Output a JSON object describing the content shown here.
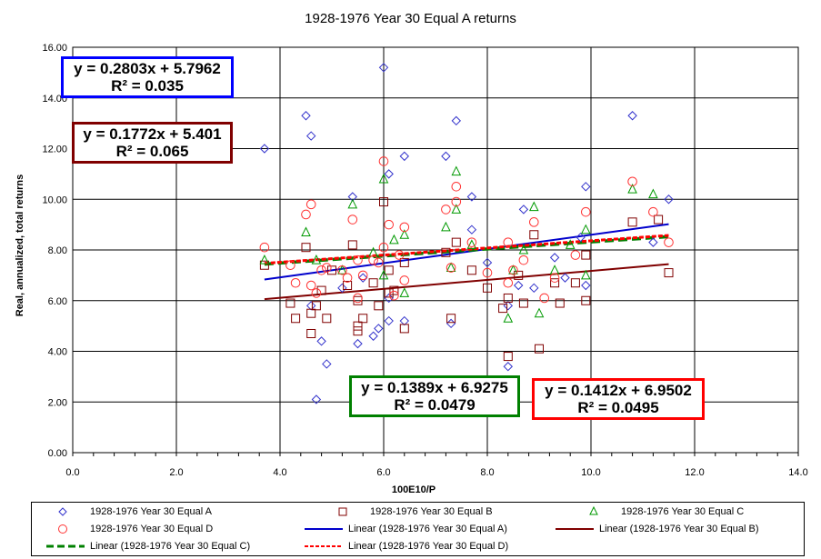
{
  "chart_data": {
    "type": "scatter",
    "title": "1928-1976 Year 30 Equal A returns",
    "xlabel": "100E10/P",
    "ylabel": "Real, annualized, total returns",
    "xlim": [
      0,
      14
    ],
    "ylim": [
      0,
      16
    ],
    "x_ticks": [
      "0.0",
      "2.0",
      "4.0",
      "6.0",
      "8.0",
      "10.0",
      "12.0",
      "14.0"
    ],
    "y_ticks": [
      "0.00",
      "2.00",
      "4.00",
      "6.00",
      "8.00",
      "10.00",
      "12.00",
      "14.00",
      "16.00"
    ],
    "grid": "vertical and horizontal major gridlines",
    "legend_position": "bottom",
    "series": [
      {
        "name": "1928-1976 Year 30 Equal A",
        "marker": "diamond",
        "color": "#3333cc",
        "points": [
          [
            3.7,
            12.0
          ],
          [
            4.5,
            13.3
          ],
          [
            4.6,
            12.5
          ],
          [
            4.7,
            2.1
          ],
          [
            4.9,
            3.5
          ],
          [
            4.6,
            5.8
          ],
          [
            4.8,
            4.4
          ],
          [
            5.2,
            6.5
          ],
          [
            5.4,
            10.1
          ],
          [
            5.5,
            4.3
          ],
          [
            5.8,
            4.6
          ],
          [
            5.9,
            4.9
          ],
          [
            6.0,
            15.2
          ],
          [
            6.1,
            11.0
          ],
          [
            6.1,
            5.2
          ],
          [
            6.4,
            11.7
          ],
          [
            6.4,
            5.2
          ],
          [
            7.2,
            11.7
          ],
          [
            7.3,
            5.1
          ],
          [
            7.4,
            13.1
          ],
          [
            7.7,
            10.1
          ],
          [
            7.7,
            8.8
          ],
          [
            8.0,
            7.5
          ],
          [
            8.4,
            3.4
          ],
          [
            8.4,
            5.8
          ],
          [
            8.7,
            9.6
          ],
          [
            8.9,
            6.5
          ],
          [
            9.3,
            7.7
          ],
          [
            9.5,
            6.9
          ],
          [
            9.8,
            8.5
          ],
          [
            9.9,
            10.5
          ],
          [
            9.9,
            6.6
          ],
          [
            10.8,
            13.3
          ],
          [
            11.2,
            8.3
          ],
          [
            11.5,
            10.0
          ],
          [
            6.1,
            6.1
          ],
          [
            5.6,
            6.9
          ],
          [
            8.6,
            6.6
          ]
        ]
      },
      {
        "name": "1928-1976 Year 30 Equal B",
        "marker": "square",
        "color": "#800000",
        "points": [
          [
            3.7,
            7.4
          ],
          [
            4.2,
            5.9
          ],
          [
            4.3,
            5.3
          ],
          [
            4.5,
            8.1
          ],
          [
            4.6,
            4.7
          ],
          [
            4.6,
            5.5
          ],
          [
            4.7,
            5.8
          ],
          [
            4.8,
            6.4
          ],
          [
            4.9,
            5.3
          ],
          [
            5.0,
            7.2
          ],
          [
            5.3,
            6.6
          ],
          [
            5.4,
            8.2
          ],
          [
            5.5,
            5.0
          ],
          [
            5.5,
            6.0
          ],
          [
            5.5,
            4.8
          ],
          [
            5.6,
            5.3
          ],
          [
            5.8,
            6.7
          ],
          [
            5.9,
            5.8
          ],
          [
            6.0,
            9.9
          ],
          [
            6.1,
            6.3
          ],
          [
            6.1,
            7.2
          ],
          [
            6.2,
            6.4
          ],
          [
            6.4,
            4.9
          ],
          [
            6.4,
            7.5
          ],
          [
            7.2,
            7.9
          ],
          [
            7.3,
            5.3
          ],
          [
            7.4,
            8.3
          ],
          [
            7.7,
            7.2
          ],
          [
            8.0,
            6.5
          ],
          [
            8.3,
            5.7
          ],
          [
            8.4,
            6.1
          ],
          [
            8.4,
            3.8
          ],
          [
            8.6,
            7.0
          ],
          [
            8.7,
            5.9
          ],
          [
            8.9,
            8.6
          ],
          [
            9.0,
            4.1
          ],
          [
            9.3,
            6.7
          ],
          [
            9.4,
            5.9
          ],
          [
            9.7,
            6.7
          ],
          [
            9.9,
            6.0
          ],
          [
            9.9,
            7.8
          ],
          [
            10.8,
            9.1
          ],
          [
            11.3,
            9.2
          ],
          [
            11.5,
            7.1
          ]
        ]
      },
      {
        "name": "1928-1976 Year 30 Equal C",
        "marker": "triangle",
        "color": "#009900",
        "points": [
          [
            3.7,
            7.6
          ],
          [
            4.5,
            8.7
          ],
          [
            4.7,
            7.6
          ],
          [
            5.4,
            9.8
          ],
          [
            5.8,
            7.9
          ],
          [
            6.0,
            10.8
          ],
          [
            6.2,
            8.4
          ],
          [
            6.4,
            6.3
          ],
          [
            6.4,
            8.6
          ],
          [
            7.2,
            8.9
          ],
          [
            7.3,
            7.3
          ],
          [
            7.4,
            11.1
          ],
          [
            7.4,
            9.6
          ],
          [
            8.4,
            5.3
          ],
          [
            8.5,
            7.2
          ],
          [
            8.7,
            8.0
          ],
          [
            8.9,
            9.7
          ],
          [
            9.0,
            5.5
          ],
          [
            9.3,
            7.2
          ],
          [
            9.9,
            7.0
          ],
          [
            9.9,
            8.8
          ],
          [
            10.8,
            10.4
          ],
          [
            11.2,
            10.2
          ],
          [
            5.2,
            7.2
          ],
          [
            6.0,
            7.0
          ],
          [
            7.7,
            8.2
          ],
          [
            9.6,
            8.2
          ]
        ]
      },
      {
        "name": "1928-1976 Year 30 Equal D",
        "marker": "circle",
        "color": "#ff3333",
        "points": [
          [
            3.7,
            8.1
          ],
          [
            4.2,
            7.4
          ],
          [
            4.3,
            6.7
          ],
          [
            4.5,
            9.4
          ],
          [
            4.6,
            9.8
          ],
          [
            4.6,
            6.6
          ],
          [
            4.7,
            6.3
          ],
          [
            4.8,
            7.2
          ],
          [
            4.9,
            7.3
          ],
          [
            5.2,
            7.2
          ],
          [
            5.3,
            6.9
          ],
          [
            5.4,
            9.2
          ],
          [
            5.5,
            6.1
          ],
          [
            5.5,
            7.6
          ],
          [
            5.6,
            7.0
          ],
          [
            5.8,
            7.6
          ],
          [
            5.9,
            7.5
          ],
          [
            6.0,
            11.5
          ],
          [
            6.0,
            8.1
          ],
          [
            6.1,
            9.0
          ],
          [
            6.2,
            6.2
          ],
          [
            6.3,
            7.8
          ],
          [
            6.4,
            8.9
          ],
          [
            6.4,
            6.8
          ],
          [
            7.2,
            9.6
          ],
          [
            7.3,
            7.3
          ],
          [
            7.4,
            10.5
          ],
          [
            7.4,
            9.9
          ],
          [
            7.7,
            8.3
          ],
          [
            8.0,
            7.1
          ],
          [
            8.4,
            6.7
          ],
          [
            8.5,
            7.2
          ],
          [
            8.7,
            7.6
          ],
          [
            8.9,
            9.1
          ],
          [
            9.1,
            6.1
          ],
          [
            9.3,
            6.9
          ],
          [
            9.7,
            7.8
          ],
          [
            9.9,
            9.5
          ],
          [
            10.8,
            10.7
          ],
          [
            11.2,
            9.5
          ],
          [
            11.5,
            8.3
          ],
          [
            8.4,
            8.3
          ]
        ]
      }
    ],
    "trendlines": [
      {
        "name": "Linear (1928-1976 Year 30 Equal A)",
        "slope": 0.2803,
        "intercept": 5.7962,
        "r2": 0.035,
        "x_range": [
          3.7,
          11.5
        ],
        "color": "#0000cc",
        "style": "solid",
        "equation_label": "y = 0.2803x + 5.7962",
        "r2_label": "R² = 0.035",
        "label_border": "#0000ff"
      },
      {
        "name": "Linear (1928-1976 Year 30 Equal B)",
        "slope": 0.1772,
        "intercept": 5.401,
        "r2": 0.065,
        "x_range": [
          3.7,
          11.5
        ],
        "color": "#800000",
        "style": "solid",
        "equation_label": "y = 0.1772x + 5.401",
        "r2_label": "R² = 0.065",
        "label_border": "#800000"
      },
      {
        "name": "Linear (1928-1976 Year 30 Equal C)",
        "slope": 0.1389,
        "intercept": 6.9275,
        "r2": 0.0479,
        "x_range": [
          3.7,
          11.5
        ],
        "color": "#008000",
        "style": "dashed",
        "equation_label": "y = 0.1389x + 6.9275",
        "r2_label": "R² = 0.0479",
        "label_border": "#008000"
      },
      {
        "name": "Linear (1928-1976 Year 30 Equal D)",
        "slope": 0.1412,
        "intercept": 6.9502,
        "r2": 0.0495,
        "x_range": [
          3.7,
          11.5
        ],
        "color": "#ff0000",
        "style": "dotted-dashed",
        "equation_label": "y = 0.1412x + 6.9502",
        "r2_label": "R² = 0.0495",
        "label_border": "#ff0000"
      }
    ]
  }
}
